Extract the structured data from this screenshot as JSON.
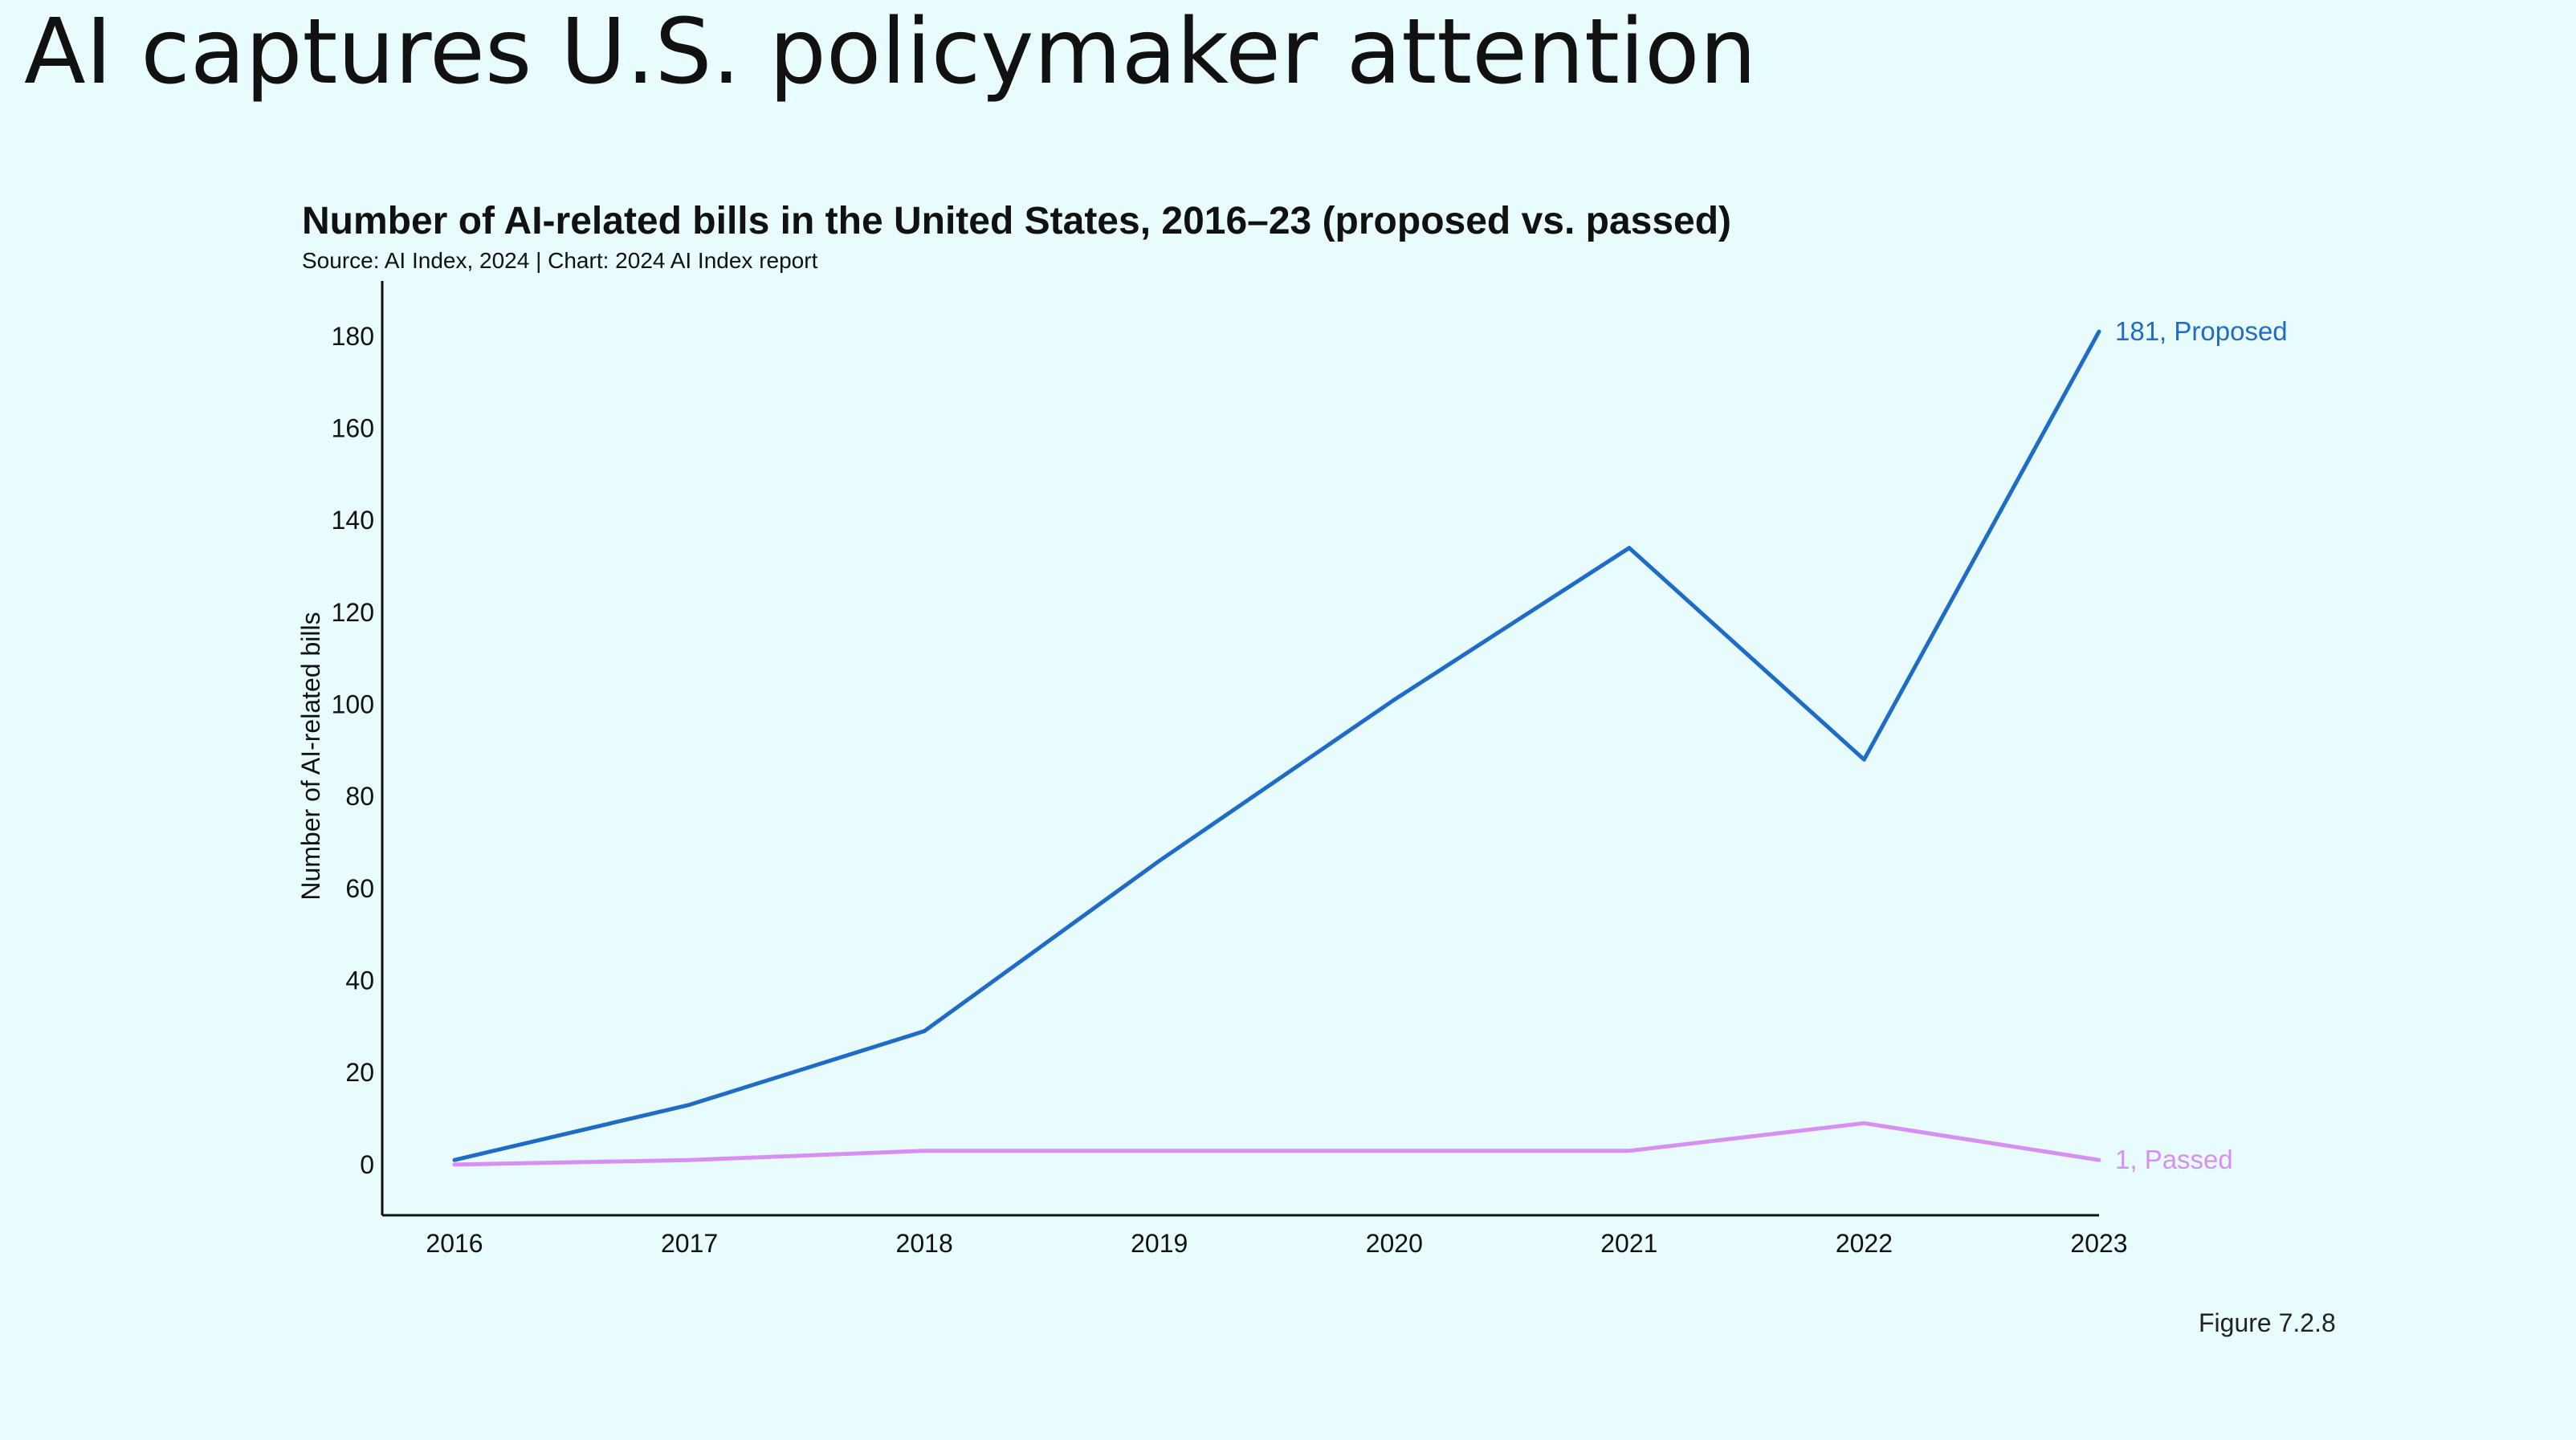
{
  "slide": {
    "title": "AI captures U.S. policymaker attention",
    "figure": "Figure 7.2.8"
  },
  "chart_data": {
    "type": "line",
    "title": "Number of AI-related bills in the United States, 2016–23 (proposed vs. passed)",
    "subtitle": "Source: AI Index, 2024 | Chart: 2024 AI Index report",
    "xlabel": "",
    "ylabel": "Number of AI-related bills",
    "categories": [
      "2016",
      "2017",
      "2018",
      "2019",
      "2020",
      "2021",
      "2022",
      "2023"
    ],
    "ylim": [
      -11,
      192
    ],
    "yticks": [
      0,
      20,
      40,
      60,
      80,
      100,
      120,
      140,
      160,
      180
    ],
    "grid": false,
    "legend": "end-of-line labels",
    "series": [
      {
        "name": "Proposed",
        "values": [
          1,
          13,
          29,
          66,
          101,
          134,
          88,
          181
        ],
        "color": "#1f6cc7",
        "end_label": "181, Proposed"
      },
      {
        "name": "Passed",
        "values": [
          0,
          1,
          3,
          3,
          3,
          3,
          9,
          1
        ],
        "color": "#d88ff2",
        "end_label": "1, Passed"
      }
    ]
  }
}
